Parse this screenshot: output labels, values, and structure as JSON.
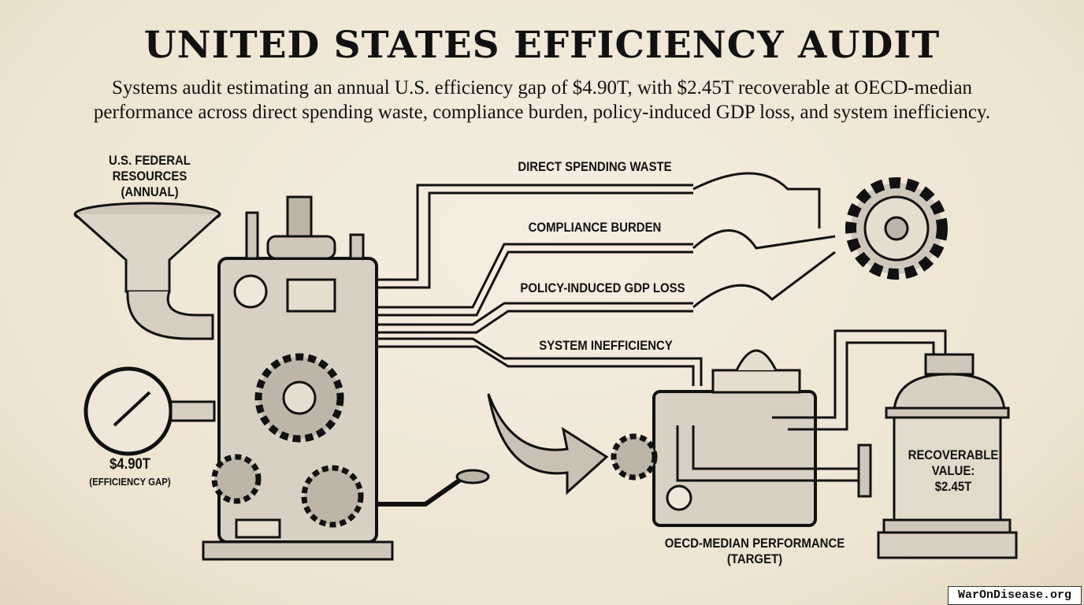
{
  "header": {
    "title": "UNITED STATES EFFICIENCY AUDIT",
    "subtitle_line1": "Systems audit estimating an annual U.S. efficiency gap of $4.90T, with $2.45T recoverable at OECD-median",
    "subtitle_line2": "performance across direct spending waste, compliance burden, policy-induced GDP loss, and system inefficiency."
  },
  "input": {
    "line1": "U.S. FEDERAL",
    "line2": "RESOURCES",
    "line3": "(ANNUAL)"
  },
  "gauge": {
    "value": "$4.90T",
    "caption": "(EFFICIENCY GAP)"
  },
  "streams": [
    {
      "label": "DIRECT SPENDING WASTE"
    },
    {
      "label": "COMPLIANCE BURDEN"
    },
    {
      "label": "POLICY-INDUCED GDP LOSS"
    },
    {
      "label": "SYSTEM INEFFICIENCY"
    }
  ],
  "target": {
    "line1": "OECD-MEDIAN PERFORMANCE",
    "line2": "(TARGET)"
  },
  "output": {
    "line1": "RECOVERABLE",
    "line2": "VALUE:",
    "line3": "$2.45T"
  },
  "watermark": "WarOnDisease.org",
  "colors": {
    "paper": "#f1e9da",
    "ink": "#111111",
    "metal": "#d9d2c4"
  }
}
